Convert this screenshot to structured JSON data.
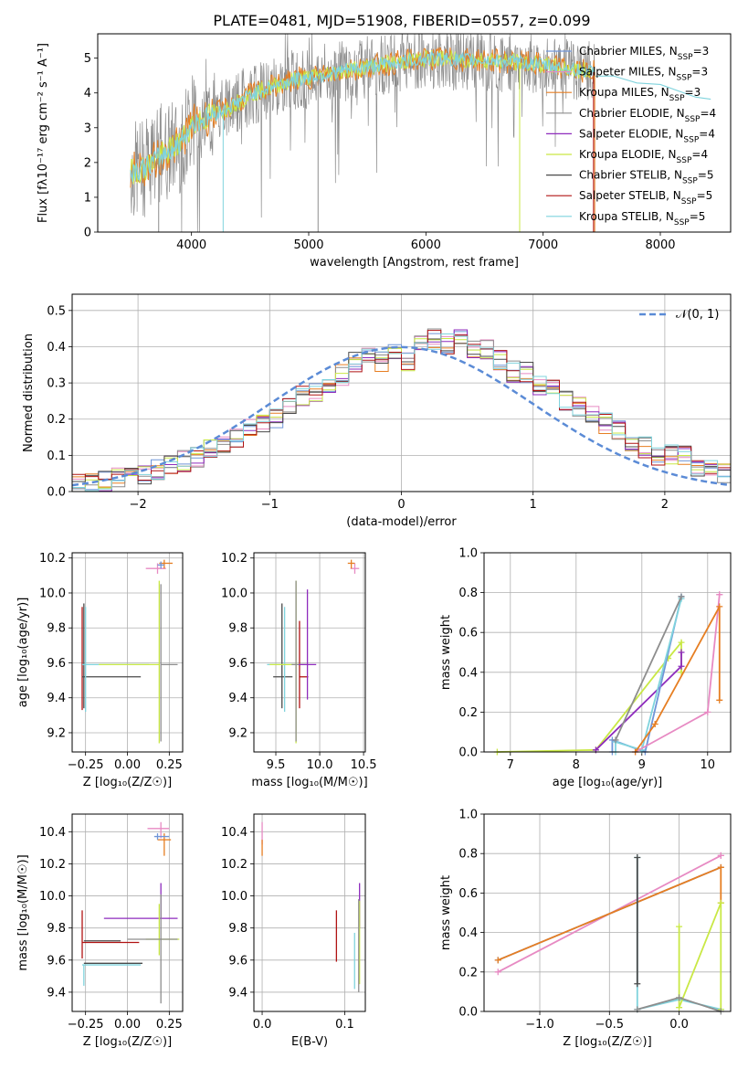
{
  "figure": {
    "title": "PLATE=0481, MJD=51908, FIBERID=0557, z=0.099"
  },
  "colors": {
    "chabrier_miles": "#6f95d8",
    "salpeter_miles": "#e78ac3",
    "kroupa_miles": "#e67e22",
    "chabrier_elodie": "#8d8d8d",
    "salpeter_elodie": "#8e2bbd",
    "kroupa_elodie": "#c9e845",
    "chabrier_stelib": "#4a4a4a",
    "salpeter_stelib": "#b01313",
    "kroupa_stelib": "#7fd3dd",
    "normal": "#5b8bd6"
  },
  "chart_data": [
    {
      "id": "spectrum",
      "type": "line",
      "xlabel": "wavelength [Angstrom, rest frame]",
      "ylabel": "Flux [fλ10⁻¹⁷ erg cm⁻² s⁻¹ A⁻¹]",
      "xlim": [
        3200,
        8600
      ],
      "ylim": [
        0,
        5.7
      ],
      "xticks": [
        4000,
        5000,
        6000,
        7000,
        8000
      ],
      "yticks": [
        0,
        1,
        2,
        3,
        4,
        5
      ],
      "legend": [
        {
          "label": "Chabrier MILES, N_SSP=3",
          "color": "#6f95d8"
        },
        {
          "label": "Salpeter MILES, N_SSP=3",
          "color": "#e78ac3"
        },
        {
          "label": "Kroupa MILES, N_SSP=3",
          "color": "#e67e22"
        },
        {
          "label": "Chabrier ELODIE, N_SSP=4",
          "color": "#8d8d8d"
        },
        {
          "label": "Salpeter ELODIE, N_SSP=4",
          "color": "#8e2bbd"
        },
        {
          "label": "Kroupa ELODIE, N_SSP=4",
          "color": "#c9e845"
        },
        {
          "label": "Chabrier STELIB, N_SSP=5",
          "color": "#4a4a4a"
        },
        {
          "label": "Salpeter STELIB, N_SSP=5",
          "color": "#b01313"
        },
        {
          "label": "Kroupa STELIB, N_SSP=5",
          "color": "#7fd3dd"
        }
      ],
      "legend_placement": "right",
      "continuum": [
        {
          "x": 3480,
          "y": 1.75
        },
        {
          "x": 3600,
          "y": 1.85
        },
        {
          "x": 3750,
          "y": 2.2
        },
        {
          "x": 3900,
          "y": 2.55
        },
        {
          "x": 4000,
          "y": 3.1
        },
        {
          "x": 4100,
          "y": 3.25
        },
        {
          "x": 4300,
          "y": 3.55
        },
        {
          "x": 4500,
          "y": 3.95
        },
        {
          "x": 4700,
          "y": 4.2
        },
        {
          "x": 4900,
          "y": 4.4
        },
        {
          "x": 5100,
          "y": 4.5
        },
        {
          "x": 5300,
          "y": 4.65
        },
        {
          "x": 5500,
          "y": 4.75
        },
        {
          "x": 5700,
          "y": 4.85
        },
        {
          "x": 5900,
          "y": 4.95
        },
        {
          "x": 6100,
          "y": 5.0
        },
        {
          "x": 6300,
          "y": 4.95
        },
        {
          "x": 6500,
          "y": 4.95
        },
        {
          "x": 6700,
          "y": 4.9
        },
        {
          "x": 6900,
          "y": 4.85
        },
        {
          "x": 7100,
          "y": 4.75
        },
        {
          "x": 7300,
          "y": 4.65
        },
        {
          "x": 7440,
          "y": 4.6
        }
      ],
      "kroupa_stelib_extension": [
        {
          "x": 7440,
          "y": 4.55
        },
        {
          "x": 7600,
          "y": 4.45
        },
        {
          "x": 7800,
          "y": 4.35
        },
        {
          "x": 8000,
          "y": 4.2
        },
        {
          "x": 8300,
          "y": 3.95
        },
        {
          "x": 8430,
          "y": 3.85
        }
      ]
    },
    {
      "id": "residuals",
      "type": "histogram",
      "xlabel": "(data-model)/error",
      "ylabel": "Normed distribution",
      "xlim": [
        -2.5,
        2.5
      ],
      "ylim": [
        0,
        0.545
      ],
      "xticks": [
        -2,
        -1,
        0,
        1,
        2
      ],
      "yticks": [
        0.0,
        0.1,
        0.2,
        0.3,
        0.4,
        0.5
      ],
      "legend": [
        {
          "label": "𝒩(0, 1)",
          "color": "#5b8bd6",
          "style": "dashed"
        }
      ],
      "legend_placement": "top-right",
      "bins": {
        "start": -2.5,
        "width": 0.1
      },
      "base_values": [
        0.02,
        0.025,
        0.03,
        0.045,
        0.04,
        0.04,
        0.06,
        0.07,
        0.08,
        0.085,
        0.11,
        0.11,
        0.13,
        0.16,
        0.18,
        0.18,
        0.21,
        0.25,
        0.25,
        0.27,
        0.3,
        0.35,
        0.36,
        0.33,
        0.38,
        0.32,
        0.41,
        0.45,
        0.43,
        0.48,
        0.42,
        0.44,
        0.4,
        0.36,
        0.38,
        0.34,
        0.37,
        0.3,
        0.29,
        0.27,
        0.24,
        0.22,
        0.18,
        0.16,
        0.13,
        0.14,
        0.16,
        0.1,
        0.09,
        0.08,
        0.05,
        0.04,
        0.04,
        0.035,
        0.03,
        0.04,
        0.04,
        0.035,
        0.02,
        0.03,
        0.025,
        0.02,
        0.015,
        0.02,
        0.01,
        0.01,
        0.01,
        0.005,
        0.005,
        0.005,
        0.005,
        0.005,
        0.004,
        0.003,
        0.003,
        0.002,
        0.002,
        0.002,
        0.002,
        0.002,
        0.002,
        0.002,
        0.002,
        0.002,
        0.002,
        0.002,
        0.002,
        0.002,
        0.002,
        0.002,
        0.002,
        0.002,
        0.002,
        0.002,
        0.002,
        0.002,
        0.002,
        0.002,
        0.002,
        0.002
      ],
      "hist_values_note": "",
      "gaussian": {
        "mean": 0.0,
        "sigma": 1.0
      }
    },
    {
      "id": "age_vs_Z",
      "type": "scatter",
      "xlabel": "Z [log₁₀(Z/Z☉)]",
      "ylabel": "age  [log₁₀(age/yr)]",
      "xlim": [
        -0.33,
        0.33
      ],
      "ylim": [
        9.09,
        10.23
      ],
      "xticks": [
        -0.25,
        0.0,
        0.25
      ],
      "yticks": [
        9.2,
        9.4,
        9.6,
        9.8,
        10.0,
        10.2
      ],
      "points": [
        {
          "series": "salpeter_miles",
          "x": 0.18,
          "y": 10.14,
          "xerr": [
            0.07,
            0.05
          ],
          "yerr": [
            0.03,
            0.03
          ]
        },
        {
          "series": "kroupa_miles",
          "x": 0.22,
          "y": 10.17,
          "xerr": [
            0.03,
            0.05
          ],
          "yerr": [
            0.03,
            0.02
          ]
        },
        {
          "series": "chabrier_miles",
          "x": 0.2,
          "y": 10.16,
          "xerr": [
            0.02,
            0.02
          ],
          "yerr": [
            0.02,
            0.02
          ]
        },
        {
          "series": "salpeter_stelib",
          "x": -0.27,
          "y": 9.6,
          "xerr": [
            0.0,
            0.0
          ],
          "yerr": [
            0.27,
            0.32
          ]
        },
        {
          "series": "chabrier_stelib",
          "x": -0.26,
          "y": 9.52,
          "xerr": [
            0.01,
            0.34
          ],
          "yerr": [
            0.18,
            0.42
          ]
        },
        {
          "series": "kroupa_stelib",
          "x": -0.25,
          "y": 9.59,
          "xerr": [
            0.02,
            0.38
          ],
          "yerr": [
            0.27,
            0.33
          ]
        },
        {
          "series": "chabrier_elodie",
          "x": 0.2,
          "y": 9.59,
          "xerr": [
            0.0,
            0.1
          ],
          "yerr": [
            0.44,
            0.46
          ]
        },
        {
          "series": "kroupa_elodie",
          "x": 0.19,
          "y": 9.59,
          "xerr": [
            0.36,
            0.0
          ],
          "yerr": [
            0.45,
            0.48
          ]
        }
      ]
    },
    {
      "id": "age_vs_mass",
      "type": "scatter",
      "xlabel": "mass [log₁₀(M/M☉)]",
      "ylabel": "",
      "xlim": [
        9.25,
        10.52
      ],
      "ylim": [
        9.09,
        10.23
      ],
      "xticks": [
        9.5,
        10.0,
        10.5
      ],
      "yticks": [
        9.2,
        9.4,
        9.6,
        9.8,
        10.0,
        10.2
      ],
      "points": [
        {
          "series": "salpeter_miles",
          "x": 10.4,
          "y": 10.14,
          "xerr": [
            0.05,
            0.05
          ],
          "yerr": [
            0.03,
            0.03
          ]
        },
        {
          "series": "kroupa_miles",
          "x": 10.36,
          "y": 10.17,
          "xerr": [
            0.04,
            0.04
          ],
          "yerr": [
            0.03,
            0.02
          ]
        },
        {
          "series": "chabrier_stelib",
          "x": 9.57,
          "y": 9.52,
          "xerr": [
            0.1,
            0.12
          ],
          "yerr": [
            0.18,
            0.42
          ]
        },
        {
          "series": "kroupa_stelib",
          "x": 9.6,
          "y": 9.59,
          "xerr": [
            0.2,
            0.1
          ],
          "yerr": [
            0.27,
            0.33
          ]
        },
        {
          "series": "salpeter_stelib",
          "x": 9.77,
          "y": 9.52,
          "xerr": [
            0.0,
            0.1
          ],
          "yerr": [
            0.18,
            0.32
          ]
        },
        {
          "series": "kroupa_elodie",
          "x": 9.73,
          "y": 9.59,
          "xerr": [
            0.3,
            0.12
          ],
          "yerr": [
            0.45,
            0.48
          ]
        },
        {
          "series": "chabrier_elodie",
          "x": 9.73,
          "y": 9.59,
          "xerr": [
            0.05,
            0.12
          ],
          "yerr": [
            0.44,
            0.48
          ]
        },
        {
          "series": "salpeter_elodie",
          "x": 9.86,
          "y": 9.59,
          "xerr": [
            0.1,
            0.1
          ],
          "yerr": [
            0.2,
            0.43
          ]
        }
      ]
    },
    {
      "id": "weight_vs_age",
      "type": "line",
      "xlabel": "age  [log₁₀(age/yr)]",
      "ylabel": "mass weight",
      "xlim": [
        6.6,
        10.35
      ],
      "ylim": [
        0,
        1.0
      ],
      "xticks": [
        7,
        8,
        9,
        10
      ],
      "yticks": [
        0.0,
        0.2,
        0.4,
        0.6,
        0.8,
        1.0
      ],
      "series": [
        {
          "name": "kroupa_elodie",
          "x": [
            6.8,
            8.3,
            9.4,
            9.6,
            9.6
          ],
          "y": [
            0.0,
            0.01,
            0.47,
            0.55,
            0.4
          ]
        },
        {
          "name": "salpeter_elodie",
          "x": [
            8.3,
            9.6,
            9.6
          ],
          "y": [
            0.01,
            0.43,
            0.5
          ]
        },
        {
          "name": "chabrier_miles",
          "x": [
            8.55,
            8.55,
            9.05,
            9.6,
            9.6
          ],
          "y": [
            0.0,
            0.06,
            0.0,
            0.78,
            0.78
          ]
        },
        {
          "name": "kroupa_stelib",
          "x": [
            8.6,
            8.6,
            9.0,
            9.6,
            9.6
          ],
          "y": [
            0.0,
            0.05,
            0.01,
            0.77,
            0.77
          ]
        },
        {
          "name": "salpeter_miles",
          "x": [
            8.9,
            10.0,
            10.18,
            10.18
          ],
          "y": [
            0.0,
            0.2,
            0.79,
            0.79
          ]
        },
        {
          "name": "kroupa_miles",
          "x": [
            8.9,
            9.2,
            10.18,
            10.18
          ],
          "y": [
            0.0,
            0.14,
            0.73,
            0.26
          ]
        },
        {
          "name": "chabrier_elodie",
          "x": [
            8.6,
            9.6
          ],
          "y": [
            0.06,
            0.78
          ]
        }
      ]
    },
    {
      "id": "mass_vs_Z",
      "type": "scatter",
      "xlabel": "Z [log₁₀(Z/Z☉)]",
      "ylabel": "mass [log₁₀(M/M☉)]",
      "xlim": [
        -0.33,
        0.33
      ],
      "ylim": [
        9.28,
        10.51
      ],
      "xticks": [
        -0.25,
        0.0,
        0.25
      ],
      "yticks": [
        9.4,
        9.6,
        9.8,
        10.0,
        10.2,
        10.4
      ],
      "points": [
        {
          "series": "salpeter_miles",
          "x": 0.2,
          "y": 10.42,
          "xerr": [
            0.08,
            0.05
          ],
          "yerr": [
            0.06,
            0.04
          ]
        },
        {
          "series": "kroupa_miles",
          "x": 0.22,
          "y": 10.35,
          "xerr": [
            0.04,
            0.04
          ],
          "yerr": [
            0.1,
            0.04
          ]
        },
        {
          "series": "chabrier_miles",
          "x": 0.18,
          "y": 10.37,
          "xerr": [
            0.02,
            0.07
          ],
          "yerr": [
            0.02,
            0.02
          ]
        },
        {
          "series": "salpeter_elodie",
          "x": 0.2,
          "y": 9.86,
          "xerr": [
            0.34,
            0.1
          ],
          "yerr": [
            0.0,
            0.22
          ]
        },
        {
          "series": "kroupa_elodie",
          "x": 0.19,
          "y": 9.73,
          "xerr": [
            0.08,
            0.12
          ],
          "yerr": [
            0.1,
            0.22
          ]
        },
        {
          "series": "chabrier_elodie",
          "x": 0.2,
          "y": 9.73,
          "xerr": [
            0.2,
            0.1
          ],
          "yerr": [
            0.4,
            0.28
          ]
        },
        {
          "series": "salpeter_stelib",
          "x": -0.27,
          "y": 9.71,
          "xerr": [
            0.0,
            0.34
          ],
          "yerr": [
            0.1,
            0.2
          ]
        },
        {
          "series": "chabrier_stelib",
          "x": -0.26,
          "y": 9.72,
          "xerr": [
            0.0,
            0.22
          ],
          "yerr": [
            0.0,
            0.0
          ]
        },
        {
          "series": "kroupa_stelib",
          "x": -0.26,
          "y": 9.57,
          "xerr": [
            0.01,
            0.34
          ],
          "yerr": [
            0.13,
            0.0
          ]
        },
        {
          "series": "chabrier_stelib",
          "x": -0.26,
          "y": 9.58,
          "xerr": [
            0.0,
            0.35
          ],
          "yerr": [
            0.0,
            0.0
          ]
        }
      ]
    },
    {
      "id": "mass_vs_ebv",
      "type": "scatter",
      "xlabel": "E(B-V)",
      "ylabel": "",
      "xlim": [
        -0.01,
        0.125
      ],
      "ylim": [
        9.28,
        10.51
      ],
      "xticks": [
        0.0,
        0.1
      ],
      "yticks": [
        9.4,
        9.6,
        9.8,
        10.0,
        10.2,
        10.4
      ],
      "points": [
        {
          "series": "salpeter_miles",
          "x": 0.0,
          "y": 10.4,
          "xerr": [
            0,
            0
          ],
          "yerr": [
            0.08,
            0.06
          ]
        },
        {
          "series": "kroupa_miles",
          "x": 0.0,
          "y": 10.32,
          "xerr": [
            0,
            0
          ],
          "yerr": [
            0.07,
            0.03
          ]
        },
        {
          "series": "salpeter_stelib",
          "x": 0.09,
          "y": 9.75,
          "xerr": [
            0,
            0
          ],
          "yerr": [
            0.16,
            0.16
          ]
        },
        {
          "series": "kroupa_stelib",
          "x": 0.112,
          "y": 9.5,
          "xerr": [
            0,
            0
          ],
          "yerr": [
            0.08,
            0.27
          ]
        },
        {
          "series": "salpeter_elodie",
          "x": 0.118,
          "y": 9.9,
          "xerr": [
            0,
            0
          ],
          "yerr": [
            0.1,
            0.18
          ]
        },
        {
          "series": "kroupa_elodie",
          "x": 0.118,
          "y": 9.75,
          "xerr": [
            0,
            0
          ],
          "yerr": [
            0.3,
            0.22
          ]
        },
        {
          "series": "chabrier_elodie",
          "x": 0.117,
          "y": 9.7,
          "xerr": [
            0,
            0
          ],
          "yerr": [
            0.3,
            0.28
          ]
        }
      ]
    },
    {
      "id": "weight_vs_Z",
      "type": "line",
      "xlabel": "Z [log₁₀(Z/Z☉)]",
      "ylabel": "mass weight",
      "xlim": [
        -1.4,
        0.37
      ],
      "ylim": [
        0,
        1.0
      ],
      "xticks": [
        -1.0,
        -0.5,
        0.0
      ],
      "yticks": [
        0.0,
        0.2,
        0.4,
        0.6,
        0.8,
        1.0
      ],
      "series": [
        {
          "name": "salpeter_miles",
          "x": [
            -1.3,
            0.3,
            0.3
          ],
          "y": [
            0.2,
            0.79,
            0.79
          ]
        },
        {
          "name": "chabrier_miles",
          "x": [
            -1.3,
            0.3
          ],
          "y": [
            0.26,
            0.73
          ]
        },
        {
          "name": "kroupa_miles",
          "x": [
            -1.3,
            0.3,
            0.3
          ],
          "y": [
            0.26,
            0.73,
            0.55
          ]
        },
        {
          "name": "kroupa_stelib",
          "x": [
            -0.3,
            -0.3,
            0.0,
            0.3,
            0.3
          ],
          "y": [
            0.78,
            0.01,
            0.06,
            0.01,
            0.01
          ]
        },
        {
          "name": "chabrier_stelib",
          "x": [
            -0.3,
            -0.3
          ],
          "y": [
            0.78,
            0.14
          ]
        },
        {
          "name": "kroupa_elodie",
          "x": [
            0.0,
            0.0,
            0.3,
            0.3
          ],
          "y": [
            0.43,
            0.02,
            0.55,
            0.01
          ]
        },
        {
          "name": "chabrier_elodie",
          "x": [
            -0.3,
            0.0,
            0.3
          ],
          "y": [
            0.01,
            0.07,
            0.0
          ]
        }
      ]
    }
  ]
}
